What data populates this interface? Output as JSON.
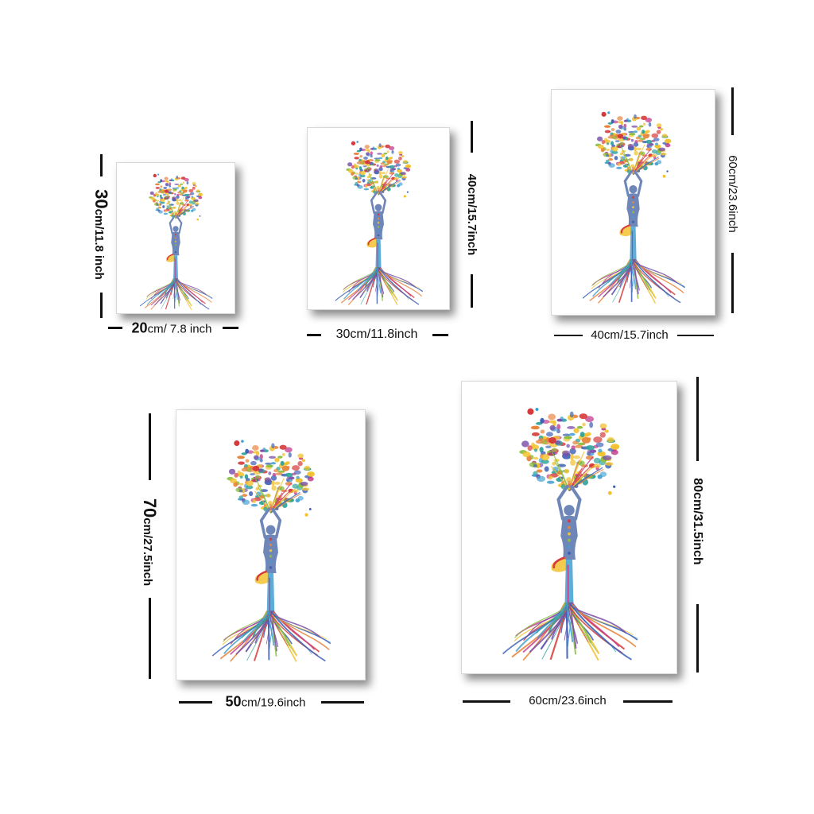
{
  "palette": [
    "#d63a3a",
    "#e8833a",
    "#f2c230",
    "#8cbf3f",
    "#3f9fd1",
    "#3c5fb5",
    "#7a4fa8",
    "#c23f8e",
    "#2fa39b"
  ],
  "figure_color": "#6f86b8",
  "sizes": [
    {
      "width_num": "20",
      "width_rest": "cm/ 7.8 inch",
      "height_num": "30",
      "height_rest": "cm/11.8 inch"
    },
    {
      "width_label": "30cm/11.8inch",
      "height_label": "40cm/15.7inch"
    },
    {
      "width_label": "40cm/15.7inch",
      "height_label": "60cm/23.6inch"
    },
    {
      "width_num": "50",
      "width_rest": "cm/19.6inch",
      "height_num": "70",
      "height_rest": "cm/27.5inch"
    },
    {
      "width_label": "60cm/23.6inch",
      "height_label": "80cm/31.5inch"
    }
  ]
}
